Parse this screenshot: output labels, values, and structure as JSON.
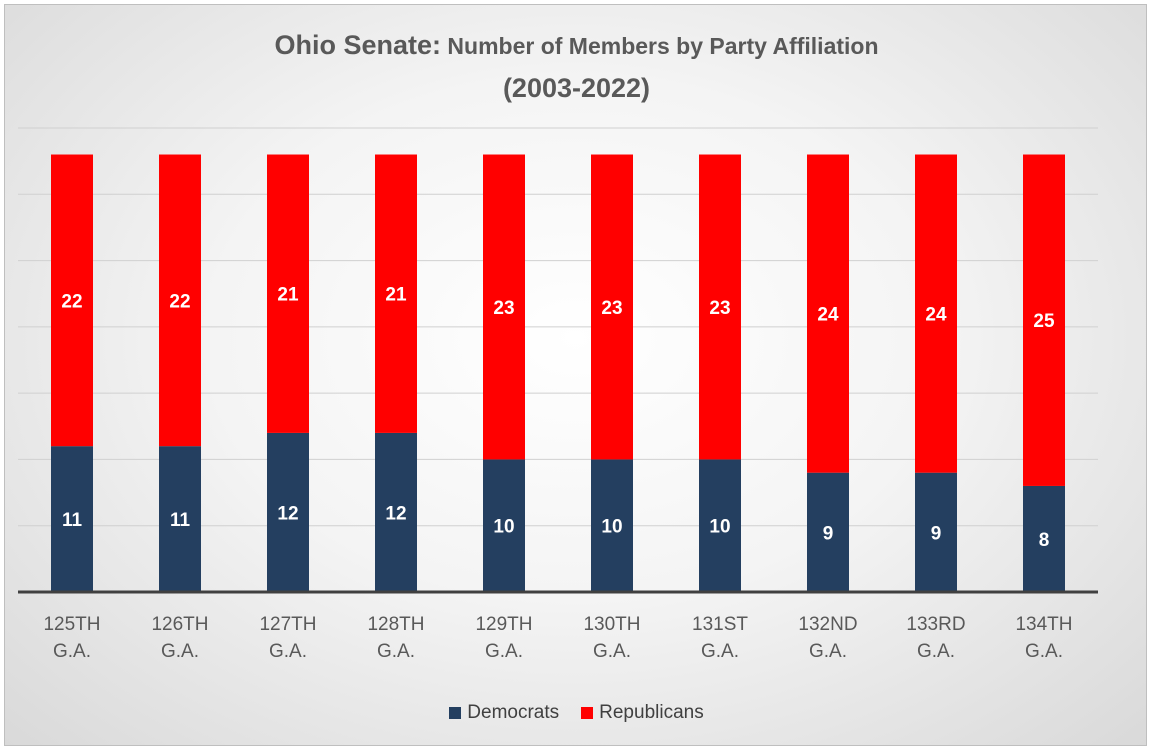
{
  "chart_data": {
    "type": "bar",
    "stacked": true,
    "title": "Ohio Senate: Number of Members by Party Affiliation",
    "subtitle": "(2003-2022)",
    "categories": [
      "125TH G.A.",
      "126TH G.A.",
      "127TH G.A.",
      "128TH G.A.",
      "129TH G.A.",
      "130TH G.A.",
      "131ST G.A.",
      "132ND G.A.",
      "133RD G.A.",
      "134TH G.A."
    ],
    "series": [
      {
        "name": "Democrats",
        "color": "#243f60",
        "values": [
          11,
          11,
          12,
          12,
          10,
          10,
          10,
          9,
          9,
          8
        ]
      },
      {
        "name": "Republicans",
        "color": "#ff0000",
        "values": [
          22,
          22,
          21,
          21,
          23,
          23,
          23,
          24,
          24,
          25
        ]
      }
    ],
    "ylim": [
      0,
      35
    ],
    "grid": true,
    "legend_position": "bottom",
    "data_labels": true
  }
}
